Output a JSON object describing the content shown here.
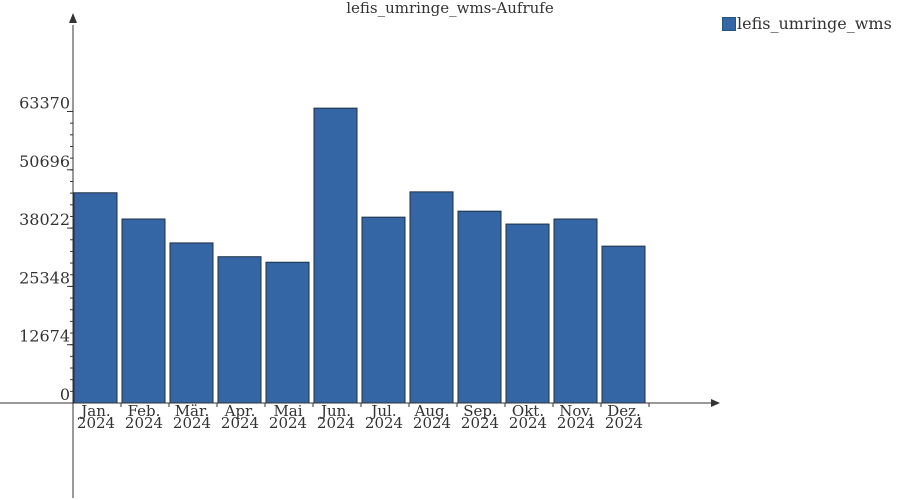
{
  "chart_data": {
    "type": "bar",
    "title": "lefis_umringe_wms-Aufrufe",
    "xlabel": "",
    "ylabel": "",
    "categories": [
      [
        "Jan.",
        "2024"
      ],
      [
        "Feb.",
        "2024"
      ],
      [
        "Mär.",
        "2024"
      ],
      [
        "Apr.",
        "2024"
      ],
      [
        "Mai",
        "2024"
      ],
      [
        "Jun.",
        "2024"
      ],
      [
        "Jul.",
        "2024"
      ],
      [
        "Aug.",
        "2024"
      ],
      [
        "Sep.",
        "2024"
      ],
      [
        "Okt.",
        "2024"
      ],
      [
        "Nov.",
        "2024"
      ],
      [
        "Dez.",
        "2024"
      ]
    ],
    "series": [
      {
        "name": "lefis_umringe_wms",
        "color": "#3465a4",
        "values": [
          45700,
          40000,
          34800,
          31800,
          30600,
          64100,
          40400,
          45900,
          41700,
          38900,
          40000,
          34100
        ]
      }
    ],
    "y_ticks": [
      "0",
      "12674",
      "25348",
      "38022",
      "50696",
      "63370"
    ],
    "y_tick_values": [
      0,
      12674,
      25348,
      38022,
      50696,
      63370
    ],
    "ylim": [
      0,
      84000
    ],
    "grid": false,
    "legend_position": "top-right"
  }
}
